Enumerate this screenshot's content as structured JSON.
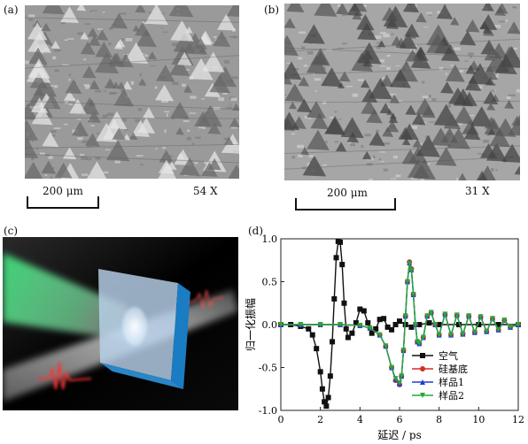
{
  "panels": {
    "a": {
      "label": "(a)",
      "scale_text": "200 μm",
      "mag_text": "54 X"
    },
    "b": {
      "label": "(b)",
      "scale_text": "200 μm",
      "mag_text": "31 X"
    },
    "c": {
      "label": "(c)"
    },
    "d": {
      "label": "(d)"
    }
  },
  "colors": {
    "air": "#111111",
    "silicon": "#d62b2b",
    "sample1": "#1f3bd6",
    "sample2": "#25a83a",
    "slab_face": "#b8d2ea",
    "slab_edge": "#1a7cc2",
    "beam_green": "#3fdc7a"
  },
  "chart_data": {
    "type": "line",
    "xlabel": "延迟 / ps",
    "ylabel": "归一化振幅",
    "xlim": [
      0,
      12
    ],
    "ylim": [
      -1.0,
      1.0
    ],
    "xticks": [
      0,
      2,
      4,
      6,
      8,
      10,
      12
    ],
    "yticks": [
      -1.0,
      -0.5,
      0.0,
      0.5,
      1.0
    ],
    "xtick_labels": [
      "0",
      "2",
      "4",
      "6",
      "8",
      "10",
      "12"
    ],
    "ytick_labels": [
      "-1.0",
      "-0.5",
      "0.0",
      "0.5",
      "1.0"
    ],
    "legend_position": "bottom-right",
    "series": [
      {
        "name": "空气",
        "color": "#111111",
        "marker": "square",
        "x": [
          0.0,
          0.5,
          1.0,
          1.4,
          1.6,
          1.8,
          2.0,
          2.1,
          2.2,
          2.3,
          2.4,
          2.5,
          2.6,
          2.7,
          2.8,
          2.9,
          3.0,
          3.1,
          3.2,
          3.3,
          3.4,
          3.6,
          3.8,
          4.0,
          4.2,
          4.4,
          4.6,
          4.8,
          5.0,
          5.2,
          5.4,
          5.6,
          5.8,
          6.0,
          6.3,
          6.6,
          7.0,
          7.5,
          8.0,
          9.0,
          10.0,
          11.0,
          12.0
        ],
        "y": [
          0.0,
          0.0,
          -0.02,
          -0.05,
          -0.12,
          -0.28,
          -0.55,
          -0.75,
          -0.9,
          -0.95,
          -0.85,
          -0.6,
          -0.2,
          0.3,
          0.78,
          0.97,
          0.96,
          0.7,
          0.25,
          -0.05,
          -0.15,
          -0.1,
          0.02,
          0.18,
          0.16,
          0.02,
          -0.1,
          -0.05,
          0.06,
          0.07,
          -0.03,
          -0.06,
          0.0,
          0.04,
          0.0,
          -0.03,
          0.0,
          0.02,
          0.0,
          0.0,
          0.0,
          0.0,
          0.0
        ]
      },
      {
        "name": "硅基底",
        "color": "#d62b2b",
        "marker": "circle",
        "x": [
          0.0,
          1.0,
          2.0,
          3.0,
          4.0,
          4.5,
          5.0,
          5.3,
          5.6,
          5.8,
          6.0,
          6.1,
          6.2,
          6.3,
          6.4,
          6.5,
          6.6,
          6.7,
          6.8,
          6.9,
          7.0,
          7.2,
          7.4,
          7.6,
          7.8,
          8.0,
          8.3,
          8.6,
          8.9,
          9.2,
          9.5,
          9.8,
          10.1,
          10.4,
          10.7,
          11.0,
          11.3,
          11.6,
          12.0
        ],
        "y": [
          0.0,
          0.0,
          0.0,
          0.0,
          -0.01,
          -0.04,
          -0.12,
          -0.25,
          -0.5,
          -0.65,
          -0.7,
          -0.6,
          -0.3,
          0.1,
          0.5,
          0.73,
          0.65,
          0.35,
          0.0,
          -0.2,
          -0.22,
          -0.15,
          0.1,
          0.14,
          0.0,
          -0.12,
          0.12,
          -0.12,
          0.11,
          -0.11,
          0.1,
          -0.09,
          0.09,
          -0.08,
          0.07,
          -0.06,
          0.05,
          -0.03,
          0.0
        ]
      },
      {
        "name": "样品1",
        "color": "#1f3bd6",
        "marker": "triangle-up",
        "x": [
          0.0,
          1.0,
          2.0,
          3.0,
          4.0,
          4.5,
          5.0,
          5.3,
          5.6,
          5.8,
          6.0,
          6.1,
          6.2,
          6.3,
          6.4,
          6.5,
          6.6,
          6.7,
          6.8,
          6.9,
          7.0,
          7.2,
          7.4,
          7.6,
          7.8,
          8.0,
          8.3,
          8.6,
          8.9,
          9.2,
          9.5,
          9.8,
          10.1,
          10.4,
          10.7,
          11.0,
          11.3,
          11.6,
          12.0
        ],
        "y": [
          0.0,
          0.0,
          0.0,
          0.0,
          -0.01,
          -0.04,
          -0.12,
          -0.25,
          -0.5,
          -0.64,
          -0.69,
          -0.6,
          -0.3,
          0.1,
          0.5,
          0.72,
          0.64,
          0.35,
          0.0,
          -0.2,
          -0.22,
          -0.15,
          0.1,
          0.14,
          0.0,
          -0.12,
          0.12,
          -0.12,
          0.11,
          -0.11,
          0.1,
          -0.09,
          0.09,
          -0.08,
          0.07,
          -0.06,
          0.05,
          -0.03,
          0.0
        ]
      },
      {
        "name": "样品2",
        "color": "#25a83a",
        "marker": "triangle-down",
        "x": [
          0.0,
          1.0,
          2.0,
          3.0,
          4.0,
          4.5,
          5.0,
          5.3,
          5.6,
          5.8,
          6.0,
          6.1,
          6.2,
          6.3,
          6.4,
          6.5,
          6.6,
          6.7,
          6.8,
          6.9,
          7.0,
          7.2,
          7.4,
          7.6,
          7.8,
          8.0,
          8.3,
          8.6,
          8.9,
          9.2,
          9.5,
          9.8,
          10.1,
          10.4,
          10.7,
          11.0,
          11.3,
          11.6,
          12.0
        ],
        "y": [
          0.0,
          0.0,
          0.0,
          0.0,
          -0.01,
          -0.04,
          -0.12,
          -0.25,
          -0.5,
          -0.63,
          -0.68,
          -0.6,
          -0.3,
          0.1,
          0.5,
          0.71,
          0.63,
          0.35,
          0.0,
          -0.2,
          -0.22,
          -0.15,
          0.1,
          0.14,
          0.0,
          -0.12,
          0.12,
          -0.12,
          0.11,
          -0.11,
          0.1,
          -0.09,
          0.09,
          -0.08,
          0.07,
          -0.06,
          0.05,
          -0.03,
          0.0
        ]
      }
    ]
  }
}
